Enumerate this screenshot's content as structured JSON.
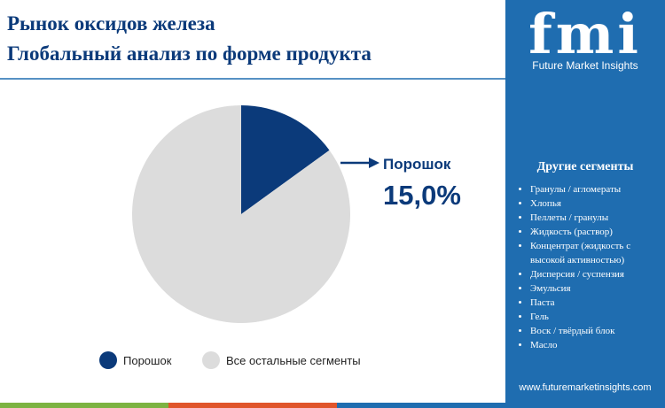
{
  "chart_data": {
    "type": "pie",
    "title": "Рынок оксидов железа",
    "subtitle": "Глобальный анализ по форме продукта",
    "categories": [
      "Порошок",
      "Все остальные сегменты"
    ],
    "values": [
      15,
      85
    ],
    "value_labels": [
      "15,0%",
      null
    ],
    "colors": [
      "#0b3a7a",
      "#dcdcdc"
    ]
  },
  "sidebar": {
    "logo": "fmi",
    "brand": "Future Market Insights",
    "heading": "Другие сегменты",
    "items": [
      "Гранулы / агломераты",
      "Хлопья",
      "Пеллеты / гранулы",
      "Жидкость (раствор)",
      "Концентрат (жидкость с высокой активностью)",
      "Дисперсия / суспензия",
      "Эмульсия",
      "Паста",
      "Гель",
      "Воск / твёрдый блок",
      "Масло"
    ],
    "website": "www.futuremarketinsights.com"
  }
}
